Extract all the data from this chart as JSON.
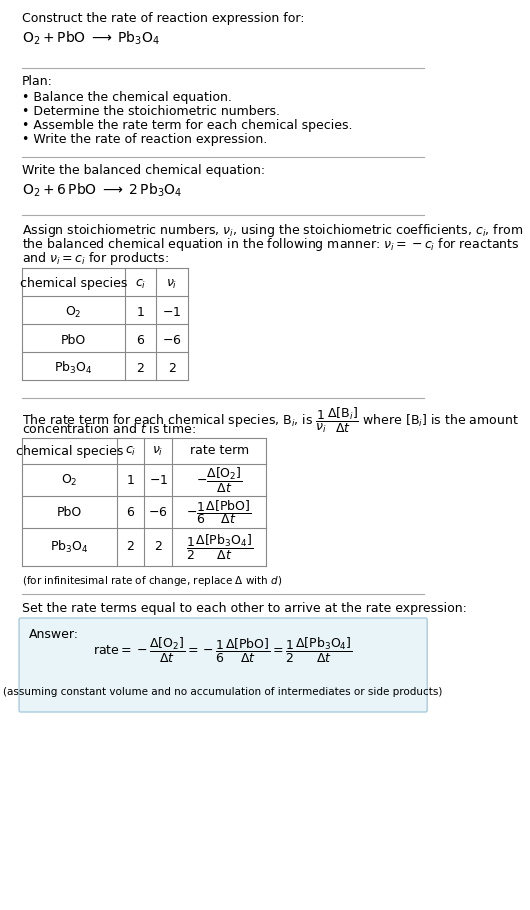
{
  "bg_color": "#ffffff",
  "text_color": "#000000",
  "section1_title": "Construct the rate of reaction expression for:",
  "section1_eq": "$\\mathrm{O_2 + PbO \\;\\longrightarrow\\; Pb_3O_4}$",
  "section2_title": "Plan:",
  "section2_bullets": [
    "Balance the chemical equation.",
    "Determine the stoichiometric numbers.",
    "Assemble the rate term for each chemical species.",
    "Write the rate of reaction expression."
  ],
  "section3_title": "Write the balanced chemical equation:",
  "section3_eq": "$\\mathrm{O_2 + 6\\,PbO \\;\\longrightarrow\\; 2\\,Pb_3O_4}$",
  "section4_title_part1": "Assign stoichiometric numbers, $\\nu_i$, using the stoichiometric coefficients, $c_i$, from",
  "section4_title_part2": "the balanced chemical equation in the following manner: $\\nu_i = -c_i$ for reactants",
  "section4_title_part3": "and $\\nu_i = c_i$ for products:",
  "table1_headers": [
    "chemical species",
    "$c_i$",
    "$\\nu_i$"
  ],
  "table1_rows": [
    [
      "$\\mathrm{O_2}$",
      "1",
      "$-1$"
    ],
    [
      "PbO",
      "6",
      "$-6$"
    ],
    [
      "$\\mathrm{Pb_3O_4}$",
      "2",
      "2"
    ]
  ],
  "section5_title_part1": "The rate term for each chemical species, $\\mathrm{B}_i$, is $\\dfrac{1}{\\nu_i}\\dfrac{\\Delta[\\mathrm{B}_i]}{\\Delta t}$ where $[\\mathrm{B}_i]$ is the amount",
  "section5_title_part2": "concentration and $t$ is time:",
  "table2_headers": [
    "chemical species",
    "$c_i$",
    "$\\nu_i$",
    "rate term"
  ],
  "table2_rows": [
    [
      "$\\mathrm{O_2}$",
      "1",
      "$-1$",
      "$-\\dfrac{\\Delta[\\mathrm{O_2}]}{\\Delta t}$"
    ],
    [
      "PbO",
      "6",
      "$-6$",
      "$-\\dfrac{1}{6}\\dfrac{\\Delta[\\mathrm{PbO}]}{\\Delta t}$"
    ],
    [
      "$\\mathrm{Pb_3O_4}$",
      "2",
      "2",
      "$\\dfrac{1}{2}\\dfrac{\\Delta[\\mathrm{Pb_3O_4}]}{\\Delta t}$"
    ]
  ],
  "infinitesimal_note": "(for infinitesimal rate of change, replace $\\Delta$ with $d$)",
  "section6_title": "Set the rate terms equal to each other to arrive at the rate expression:",
  "answer_label": "Answer:",
  "answer_eq": "$\\mathrm{rate} = -\\dfrac{\\Delta[\\mathrm{O_2}]}{\\Delta t} = -\\dfrac{1}{6}\\dfrac{\\Delta[\\mathrm{PbO}]}{\\Delta t} = \\dfrac{1}{2}\\dfrac{\\Delta[\\mathrm{Pb_3O_4}]}{\\Delta t}$",
  "answer_note": "(assuming constant volume and no accumulation of intermediates or side products)",
  "answer_box_color": "#e8f4f8"
}
